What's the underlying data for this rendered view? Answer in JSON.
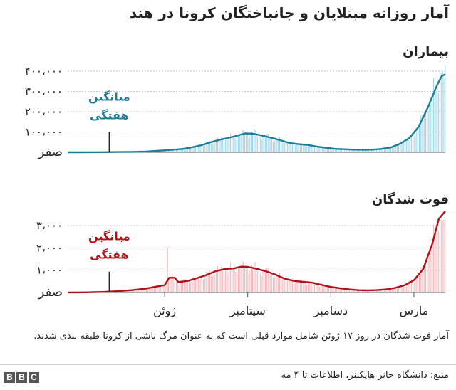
{
  "title": "آمار روزانه مبتلایان و جانباختگان کرونا در هند",
  "chart_data": [
    {
      "type": "line",
      "title": "بیماران",
      "ylim": [
        0,
        420000
      ],
      "ticks": [
        "صفر",
        "۱۰۰،۰۰۰",
        "۲۰۰،۰۰۰",
        "۳۰۰،۰۰۰",
        "۴۰۰،۰۰۰"
      ],
      "tick_values": [
        0,
        100000,
        200000,
        300000,
        400000
      ],
      "annotation": "میانگین هفتگی",
      "x_months": [
        {
          "t": 0,
          "v": 0
        },
        {
          "t": 10,
          "v": 80
        },
        {
          "t": 25,
          "v": 300
        },
        {
          "t": 40,
          "v": 700
        },
        {
          "t": 55,
          "v": 1500
        },
        {
          "t": 70,
          "v": 2200
        },
        {
          "t": 85,
          "v": 4000
        },
        {
          "t": 95,
          "v": 6500
        },
        {
          "t": 105,
          "v": 9500
        },
        {
          "t": 115,
          "v": 13000
        },
        {
          "t": 125,
          "v": 17000
        },
        {
          "t": 135,
          "v": 25000
        },
        {
          "t": 145,
          "v": 35000
        },
        {
          "t": 155,
          "v": 50000
        },
        {
          "t": 165,
          "v": 62000
        },
        {
          "t": 175,
          "v": 72000
        },
        {
          "t": 185,
          "v": 84000
        },
        {
          "t": 192,
          "v": 93000
        },
        {
          "t": 200,
          "v": 92000
        },
        {
          "t": 210,
          "v": 83000
        },
        {
          "t": 220,
          "v": 72000
        },
        {
          "t": 230,
          "v": 60000
        },
        {
          "t": 240,
          "v": 46000
        },
        {
          "t": 250,
          "v": 40000
        },
        {
          "t": 260,
          "v": 36000
        },
        {
          "t": 270,
          "v": 28000
        },
        {
          "t": 280,
          "v": 22000
        },
        {
          "t": 290,
          "v": 17000
        },
        {
          "t": 300,
          "v": 15000
        },
        {
          "t": 310,
          "v": 13000
        },
        {
          "t": 320,
          "v": 12500
        },
        {
          "t": 330,
          "v": 13000
        },
        {
          "t": 340,
          "v": 17000
        },
        {
          "t": 350,
          "v": 24000
        },
        {
          "t": 360,
          "v": 42000
        },
        {
          "t": 370,
          "v": 70000
        },
        {
          "t": 380,
          "v": 125000
        },
        {
          "t": 390,
          "v": 220000
        },
        {
          "t": 400,
          "v": 330000
        },
        {
          "t": 405,
          "v": 375000
        },
        {
          "t": 409,
          "v": 385000
        }
      ],
      "series_color": "#1b7d96",
      "bar_color": "#9fd3e3"
    },
    {
      "type": "line",
      "title": "فوت شدگان",
      "ylim": [
        0,
        4000
      ],
      "ticks": [
        "صفر",
        "۱،۰۰۰",
        "۲،۰۰۰",
        "۳،۰۰۰"
      ],
      "tick_values": [
        0,
        1000,
        2000,
        3000
      ],
      "annotation": "میانگین هفتگی",
      "x_months": [
        {
          "t": 0,
          "v": 0
        },
        {
          "t": 20,
          "v": 5
        },
        {
          "t": 40,
          "v": 30
        },
        {
          "t": 55,
          "v": 60
        },
        {
          "t": 70,
          "v": 110
        },
        {
          "t": 85,
          "v": 180
        },
        {
          "t": 95,
          "v": 260
        },
        {
          "t": 105,
          "v": 330
        },
        {
          "t": 110,
          "v": 660
        },
        {
          "t": 116,
          "v": 660
        },
        {
          "t": 120,
          "v": 470
        },
        {
          "t": 130,
          "v": 520
        },
        {
          "t": 140,
          "v": 640
        },
        {
          "t": 150,
          "v": 780
        },
        {
          "t": 160,
          "v": 950
        },
        {
          "t": 170,
          "v": 1050
        },
        {
          "t": 180,
          "v": 1080
        },
        {
          "t": 188,
          "v": 1160
        },
        {
          "t": 195,
          "v": 1150
        },
        {
          "t": 205,
          "v": 1060
        },
        {
          "t": 215,
          "v": 950
        },
        {
          "t": 225,
          "v": 800
        },
        {
          "t": 235,
          "v": 620
        },
        {
          "t": 245,
          "v": 520
        },
        {
          "t": 255,
          "v": 480
        },
        {
          "t": 265,
          "v": 440
        },
        {
          "t": 275,
          "v": 340
        },
        {
          "t": 285,
          "v": 250
        },
        {
          "t": 295,
          "v": 190
        },
        {
          "t": 305,
          "v": 140
        },
        {
          "t": 315,
          "v": 105
        },
        {
          "t": 325,
          "v": 100
        },
        {
          "t": 335,
          "v": 110
        },
        {
          "t": 345,
          "v": 140
        },
        {
          "t": 355,
          "v": 210
        },
        {
          "t": 365,
          "v": 330
        },
        {
          "t": 375,
          "v": 550
        },
        {
          "t": 385,
          "v": 1050
        },
        {
          "t": 395,
          "v": 2200
        },
        {
          "t": 402,
          "v": 3300
        },
        {
          "t": 409,
          "v": 3650
        }
      ],
      "spike": {
        "t": 108,
        "v": 2000
      },
      "series_color": "#b0121a",
      "bar_color": "#f0b8bc"
    }
  ],
  "x_ticks": [
    {
      "label": "ژوئن",
      "t": 105
    },
    {
      "label": "سپتامبر",
      "t": 195
    },
    {
      "label": "دسامبر",
      "t": 285
    },
    {
      "label": "مارس",
      "t": 375
    }
  ],
  "annotation_t": 45,
  "note": "آمار فوت شدگان در روز ۱۷ ژوئن شامل موارد قبلی است که به عنوان مرگ ناشی از کرونا طبقه بندی شدند.",
  "source": "منبع: دانشگاه جانز هاپکینز، اطلاعات تا ۴ مه",
  "logo_letters": [
    "B",
    "B",
    "C"
  ]
}
